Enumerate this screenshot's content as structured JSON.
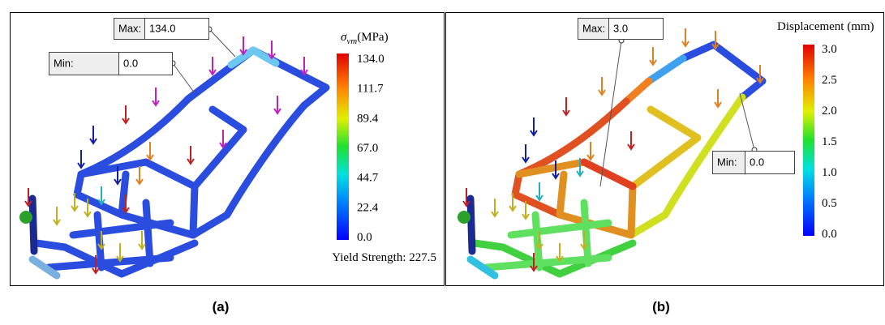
{
  "panels": [
    {
      "caption": "(a)",
      "max_callout": {
        "label": "Max:",
        "value": "134.0"
      },
      "min_callout": {
        "label": "Min:",
        "value": "0.0"
      },
      "legend_title": {
        "symbol": "σ",
        "subscript": "vm",
        "unit": "(MPa)"
      },
      "legend_ticks": [
        "134.0",
        "111.7",
        "89.4",
        "67.0",
        "44.7",
        "22.4",
        "0.0"
      ],
      "note": "Yield Strength: 227.5"
    },
    {
      "caption": "(b)",
      "max_callout": {
        "label": "Max:",
        "value": "3.0"
      },
      "min_callout": {
        "label": "Min:",
        "value": "0.0"
      },
      "legend_title": {
        "text": "Displacement (mm)"
      },
      "legend_ticks": [
        "3.0",
        "2.5",
        "2.0",
        "1.5",
        "1.0",
        "0.5",
        "0.0"
      ]
    }
  ]
}
